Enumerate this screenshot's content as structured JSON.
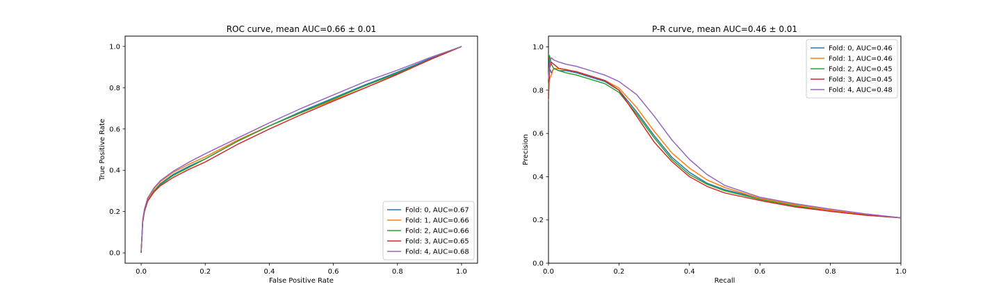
{
  "chart_data": [
    {
      "type": "line",
      "title": "ROC curve, mean AUC=0.66 ± 0.01",
      "xlabel": "False Positive Rate",
      "ylabel": "True Positive Rate",
      "xlim": [
        -0.05,
        1.05
      ],
      "ylim": [
        -0.05,
        1.05
      ],
      "xticks": [
        "0.0",
        "0.2",
        "0.4",
        "0.6",
        "0.8",
        "1.0"
      ],
      "yticks": [
        "0.0",
        "0.2",
        "0.4",
        "0.6",
        "0.8",
        "1.0"
      ],
      "grid": false,
      "legend_loc": "lower-right",
      "series": [
        {
          "name": "Fold: 0, AUC=0.67",
          "color": "#1f77b4",
          "x": [
            0,
            0.005,
            0.01,
            0.02,
            0.04,
            0.06,
            0.1,
            0.15,
            0.2,
            0.3,
            0.4,
            0.5,
            0.6,
            0.7,
            0.8,
            0.9,
            1.0
          ],
          "y": [
            0,
            0.15,
            0.2,
            0.25,
            0.3,
            0.335,
            0.38,
            0.42,
            0.455,
            0.54,
            0.615,
            0.685,
            0.75,
            0.815,
            0.875,
            0.94,
            1.0
          ]
        },
        {
          "name": "Fold: 1, AUC=0.66",
          "color": "#ff7f0e",
          "x": [
            0,
            0.005,
            0.01,
            0.02,
            0.04,
            0.06,
            0.1,
            0.15,
            0.2,
            0.3,
            0.4,
            0.5,
            0.6,
            0.7,
            0.8,
            0.9,
            1.0
          ],
          "y": [
            0,
            0.16,
            0.21,
            0.26,
            0.31,
            0.345,
            0.39,
            0.43,
            0.465,
            0.545,
            0.615,
            0.68,
            0.74,
            0.8,
            0.865,
            0.935,
            1.0
          ]
        },
        {
          "name": "Fold: 2, AUC=0.66",
          "color": "#2ca02c",
          "x": [
            0,
            0.005,
            0.01,
            0.02,
            0.04,
            0.06,
            0.1,
            0.15,
            0.2,
            0.3,
            0.4,
            0.5,
            0.6,
            0.7,
            0.8,
            0.9,
            1.0
          ],
          "y": [
            0,
            0.15,
            0.2,
            0.25,
            0.3,
            0.33,
            0.375,
            0.415,
            0.455,
            0.54,
            0.615,
            0.68,
            0.745,
            0.81,
            0.87,
            0.935,
            1.0
          ]
        },
        {
          "name": "Fold: 3, AUC=0.65",
          "color": "#d62728",
          "x": [
            0,
            0.005,
            0.01,
            0.02,
            0.04,
            0.06,
            0.1,
            0.15,
            0.2,
            0.3,
            0.4,
            0.5,
            0.6,
            0.7,
            0.8,
            0.9,
            1.0
          ],
          "y": [
            0,
            0.15,
            0.2,
            0.25,
            0.295,
            0.325,
            0.365,
            0.405,
            0.44,
            0.525,
            0.6,
            0.67,
            0.735,
            0.8,
            0.865,
            0.935,
            1.0
          ]
        },
        {
          "name": "Fold: 4, AUC=0.68",
          "color": "#9467bd",
          "x": [
            0,
            0.005,
            0.01,
            0.02,
            0.04,
            0.06,
            0.1,
            0.15,
            0.2,
            0.3,
            0.4,
            0.5,
            0.6,
            0.7,
            0.8,
            0.9,
            1.0
          ],
          "y": [
            0,
            0.16,
            0.21,
            0.265,
            0.315,
            0.35,
            0.395,
            0.44,
            0.48,
            0.555,
            0.63,
            0.7,
            0.765,
            0.83,
            0.885,
            0.945,
            1.0
          ]
        }
      ]
    },
    {
      "type": "line",
      "title": "P-R curve, mean AUC=0.46 ± 0.01",
      "xlabel": "Recall",
      "ylabel": "Precision",
      "xlim": [
        0,
        1
      ],
      "ylim": [
        0,
        1.05
      ],
      "xticks": [
        "0.0",
        "0.2",
        "0.4",
        "0.6",
        "0.8",
        "1.0"
      ],
      "yticks": [
        "0.0",
        "0.2",
        "0.4",
        "0.6",
        "0.8",
        "1.0"
      ],
      "grid": false,
      "legend_loc": "upper-right",
      "series": [
        {
          "name": "Fold: 0, AUC=0.46",
          "color": "#1f77b4",
          "x": [
            0,
            0.003,
            0.008,
            0.015,
            0.03,
            0.05,
            0.08,
            0.12,
            0.16,
            0.2,
            0.25,
            0.3,
            0.35,
            0.4,
            0.45,
            0.5,
            0.6,
            0.7,
            0.8,
            0.9,
            1.0
          ],
          "y": [
            0.78,
            0.9,
            0.88,
            0.9,
            0.89,
            0.89,
            0.88,
            0.86,
            0.84,
            0.8,
            0.7,
            0.59,
            0.49,
            0.42,
            0.37,
            0.34,
            0.3,
            0.27,
            0.245,
            0.225,
            0.21
          ]
        },
        {
          "name": "Fold: 1, AUC=0.46",
          "color": "#ff7f0e",
          "x": [
            0,
            0.003,
            0.008,
            0.015,
            0.03,
            0.05,
            0.08,
            0.12,
            0.16,
            0.2,
            0.25,
            0.3,
            0.35,
            0.4,
            0.45,
            0.5,
            0.6,
            0.7,
            0.8,
            0.9,
            1.0
          ],
          "y": [
            0.82,
            0.85,
            0.87,
            0.9,
            0.9,
            0.895,
            0.885,
            0.865,
            0.845,
            0.81,
            0.72,
            0.61,
            0.51,
            0.44,
            0.385,
            0.35,
            0.3,
            0.27,
            0.245,
            0.225,
            0.21
          ]
        },
        {
          "name": "Fold: 2, AUC=0.45",
          "color": "#2ca02c",
          "x": [
            0,
            0.003,
            0.008,
            0.015,
            0.03,
            0.05,
            0.08,
            0.12,
            0.16,
            0.2,
            0.25,
            0.3,
            0.35,
            0.4,
            0.45,
            0.5,
            0.6,
            0.7,
            0.8,
            0.9,
            1.0
          ],
          "y": [
            0.75,
            0.96,
            0.92,
            0.9,
            0.89,
            0.88,
            0.87,
            0.85,
            0.83,
            0.79,
            0.69,
            0.58,
            0.48,
            0.41,
            0.365,
            0.335,
            0.295,
            0.265,
            0.24,
            0.222,
            0.21
          ]
        },
        {
          "name": "Fold: 3, AUC=0.45",
          "color": "#d62728",
          "x": [
            0,
            0.003,
            0.008,
            0.015,
            0.03,
            0.05,
            0.08,
            0.12,
            0.16,
            0.2,
            0.25,
            0.3,
            0.35,
            0.4,
            0.45,
            0.5,
            0.6,
            0.7,
            0.8,
            0.9,
            1.0
          ],
          "y": [
            0.76,
            0.9,
            0.93,
            0.92,
            0.9,
            0.895,
            0.885,
            0.865,
            0.845,
            0.8,
            0.68,
            0.56,
            0.47,
            0.4,
            0.355,
            0.325,
            0.29,
            0.26,
            0.24,
            0.222,
            0.21
          ]
        },
        {
          "name": "Fold: 4, AUC=0.48",
          "color": "#9467bd",
          "x": [
            0,
            0.003,
            0.008,
            0.015,
            0.03,
            0.05,
            0.08,
            0.12,
            0.16,
            0.2,
            0.25,
            0.3,
            0.35,
            0.4,
            0.45,
            0.5,
            0.6,
            0.7,
            0.8,
            0.9,
            1.0
          ],
          "y": [
            0.85,
            0.92,
            0.95,
            0.94,
            0.93,
            0.92,
            0.91,
            0.89,
            0.87,
            0.84,
            0.78,
            0.68,
            0.57,
            0.48,
            0.41,
            0.36,
            0.305,
            0.275,
            0.25,
            0.228,
            0.21
          ]
        }
      ]
    }
  ]
}
